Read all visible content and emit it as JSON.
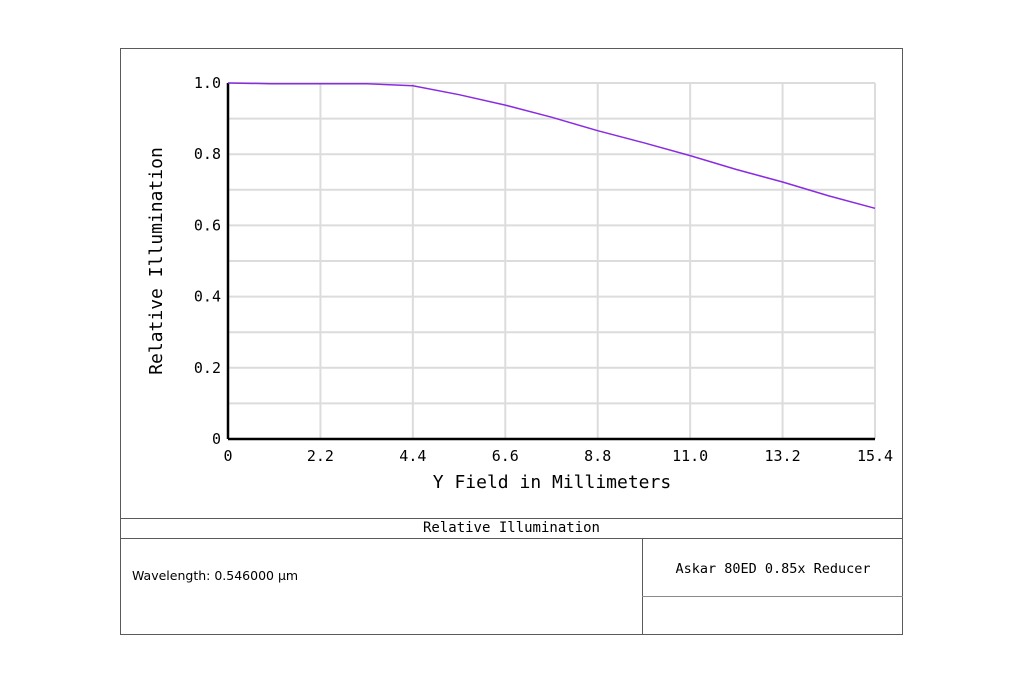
{
  "chart_data": {
    "type": "line",
    "xlabel": "Y Field in Millimeters",
    "ylabel": "Relative Illumination",
    "xlim": [
      0,
      15.4
    ],
    "ylim": [
      0,
      1.0
    ],
    "x_ticks": [
      "0",
      "2.2",
      "4.4",
      "6.6",
      "8.8",
      "11.0",
      "13.2",
      "15.4"
    ],
    "y_ticks": [
      "0",
      "0.2",
      "0.4",
      "0.6",
      "0.8",
      "1.0"
    ],
    "grid": true,
    "series": [
      {
        "color": "#8a2be2",
        "x": [
          0,
          1.0,
          2.2,
          3.3,
          4.4,
          5.5,
          6.6,
          7.7,
          8.8,
          9.9,
          11.0,
          12.1,
          13.2,
          14.3,
          15.4
        ],
        "y": [
          1.0,
          0.998,
          0.998,
          0.998,
          0.992,
          0.967,
          0.938,
          0.904,
          0.866,
          0.832,
          0.796,
          0.757,
          0.722,
          0.683,
          0.648
        ]
      }
    ]
  },
  "footer": {
    "caption": "Relative Illumination",
    "wavelength": "Wavelength: 0.546000 µm",
    "system_name": "Askar 80ED 0.85x Reducer"
  }
}
